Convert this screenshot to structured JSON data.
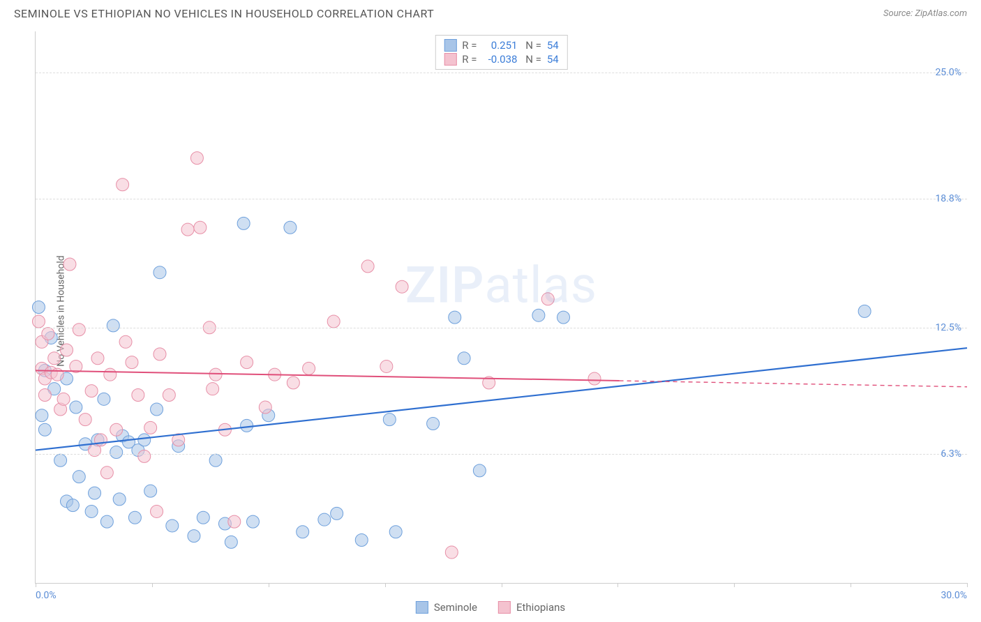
{
  "title": "SEMINOLE VS ETHIOPIAN NO VEHICLES IN HOUSEHOLD CORRELATION CHART",
  "source_label": "Source:",
  "source_value": "ZipAtlas.com",
  "y_axis_label": "No Vehicles in Household",
  "watermark_zip": "ZIP",
  "watermark_atlas": "atlas",
  "chart": {
    "type": "scatter",
    "xlim": [
      0,
      30
    ],
    "ylim": [
      0,
      27
    ],
    "x_ticks": [
      0,
      3.75,
      7.5,
      11.25,
      15,
      18.75,
      22.5,
      26.25,
      30
    ],
    "x_tick_labels_shown": {
      "0": "0.0%",
      "30": "30.0%"
    },
    "y_ticks": [
      6.3,
      12.5,
      18.8,
      25.0
    ],
    "y_tick_labels": [
      "6.3%",
      "12.5%",
      "18.8%",
      "25.0%"
    ],
    "grid_color": "#dddddd",
    "background_color": "#ffffff",
    "series": [
      {
        "name": "Seminole",
        "color_fill": "#a8c5e8",
        "color_stroke": "#6ea0dc",
        "marker_radius": 9,
        "fill_opacity": 0.55,
        "trend": {
          "x1": 0,
          "y1": 6.5,
          "x2": 30,
          "y2": 11.5,
          "color": "#2f6fd0",
          "width": 2.2,
          "solid_until_x": 30
        },
        "points": [
          [
            0.1,
            13.5
          ],
          [
            0.2,
            8.2
          ],
          [
            0.3,
            7.5
          ],
          [
            0.3,
            10.4
          ],
          [
            0.5,
            12.0
          ],
          [
            0.6,
            9.5
          ],
          [
            0.8,
            6.0
          ],
          [
            1.0,
            4.0
          ],
          [
            1.0,
            10.0
          ],
          [
            1.2,
            3.8
          ],
          [
            1.3,
            8.6
          ],
          [
            1.4,
            5.2
          ],
          [
            1.6,
            6.8
          ],
          [
            1.8,
            3.5
          ],
          [
            1.9,
            4.4
          ],
          [
            2.0,
            7.0
          ],
          [
            2.2,
            9.0
          ],
          [
            2.3,
            3.0
          ],
          [
            2.5,
            12.6
          ],
          [
            2.6,
            6.4
          ],
          [
            2.7,
            4.1
          ],
          [
            2.8,
            7.2
          ],
          [
            3.0,
            6.9
          ],
          [
            3.2,
            3.2
          ],
          [
            3.3,
            6.5
          ],
          [
            3.5,
            7.0
          ],
          [
            3.7,
            4.5
          ],
          [
            3.9,
            8.5
          ],
          [
            4.0,
            15.2
          ],
          [
            4.4,
            2.8
          ],
          [
            4.6,
            6.7
          ],
          [
            5.1,
            2.3
          ],
          [
            5.4,
            3.2
          ],
          [
            5.8,
            6.0
          ],
          [
            6.1,
            2.9
          ],
          [
            6.3,
            2.0
          ],
          [
            6.7,
            17.6
          ],
          [
            6.8,
            7.7
          ],
          [
            7.0,
            3.0
          ],
          [
            7.5,
            8.2
          ],
          [
            8.2,
            17.4
          ],
          [
            8.6,
            2.5
          ],
          [
            9.3,
            3.1
          ],
          [
            9.7,
            3.4
          ],
          [
            10.5,
            2.1
          ],
          [
            11.4,
            8.0
          ],
          [
            11.6,
            2.5
          ],
          [
            12.8,
            7.8
          ],
          [
            13.5,
            13.0
          ],
          [
            13.8,
            11.0
          ],
          [
            14.3,
            5.5
          ],
          [
            16.2,
            13.1
          ],
          [
            17.0,
            13.0
          ],
          [
            26.7,
            13.3
          ]
        ]
      },
      {
        "name": "Ethiopians",
        "color_fill": "#f4c2cf",
        "color_stroke": "#e78fa7",
        "marker_radius": 9,
        "fill_opacity": 0.55,
        "trend": {
          "x1": 0,
          "y1": 10.4,
          "x2": 30,
          "y2": 9.6,
          "color": "#e04f7a",
          "width": 2,
          "solid_until_x": 18.8
        },
        "points": [
          [
            0.1,
            12.8
          ],
          [
            0.2,
            10.5
          ],
          [
            0.2,
            11.8
          ],
          [
            0.3,
            10.0
          ],
          [
            0.3,
            9.2
          ],
          [
            0.4,
            12.2
          ],
          [
            0.5,
            10.3
          ],
          [
            0.6,
            11.0
          ],
          [
            0.7,
            10.2
          ],
          [
            0.8,
            8.5
          ],
          [
            0.9,
            9.0
          ],
          [
            1.0,
            11.4
          ],
          [
            1.1,
            15.6
          ],
          [
            1.3,
            10.6
          ],
          [
            1.4,
            12.4
          ],
          [
            1.6,
            8.0
          ],
          [
            1.8,
            9.4
          ],
          [
            1.9,
            6.5
          ],
          [
            2.0,
            11.0
          ],
          [
            2.1,
            7.0
          ],
          [
            2.3,
            5.4
          ],
          [
            2.4,
            10.2
          ],
          [
            2.6,
            7.5
          ],
          [
            2.8,
            19.5
          ],
          [
            2.9,
            11.8
          ],
          [
            3.1,
            10.8
          ],
          [
            3.3,
            9.2
          ],
          [
            3.5,
            6.2
          ],
          [
            3.7,
            7.6
          ],
          [
            3.9,
            3.5
          ],
          [
            4.0,
            11.2
          ],
          [
            4.3,
            9.2
          ],
          [
            4.6,
            7.0
          ],
          [
            4.9,
            17.3
          ],
          [
            5.2,
            20.8
          ],
          [
            5.3,
            17.4
          ],
          [
            5.6,
            12.5
          ],
          [
            5.7,
            9.5
          ],
          [
            5.8,
            10.2
          ],
          [
            6.1,
            7.5
          ],
          [
            6.4,
            3.0
          ],
          [
            6.8,
            10.8
          ],
          [
            7.4,
            8.6
          ],
          [
            7.7,
            10.2
          ],
          [
            8.3,
            9.8
          ],
          [
            8.8,
            10.5
          ],
          [
            9.6,
            12.8
          ],
          [
            10.7,
            15.5
          ],
          [
            11.3,
            10.6
          ],
          [
            11.8,
            14.5
          ],
          [
            13.4,
            1.5
          ],
          [
            14.6,
            9.8
          ],
          [
            16.5,
            13.9
          ],
          [
            18.0,
            10.0
          ]
        ]
      }
    ],
    "stats_box": [
      {
        "swatch_fill": "#a8c5e8",
        "swatch_stroke": "#6ea0dc",
        "r_label": "R =",
        "r_value": "0.251",
        "n_label": "N =",
        "n_value": "54"
      },
      {
        "swatch_fill": "#f4c2cf",
        "swatch_stroke": "#e78fa7",
        "r_label": "R =",
        "r_value": "-0.038",
        "n_label": "N =",
        "n_value": "54"
      }
    ],
    "bottom_legend": [
      {
        "swatch_fill": "#a8c5e8",
        "swatch_stroke": "#6ea0dc",
        "label": "Seminole"
      },
      {
        "swatch_fill": "#f4c2cf",
        "swatch_stroke": "#e78fa7",
        "label": "Ethiopians"
      }
    ]
  }
}
